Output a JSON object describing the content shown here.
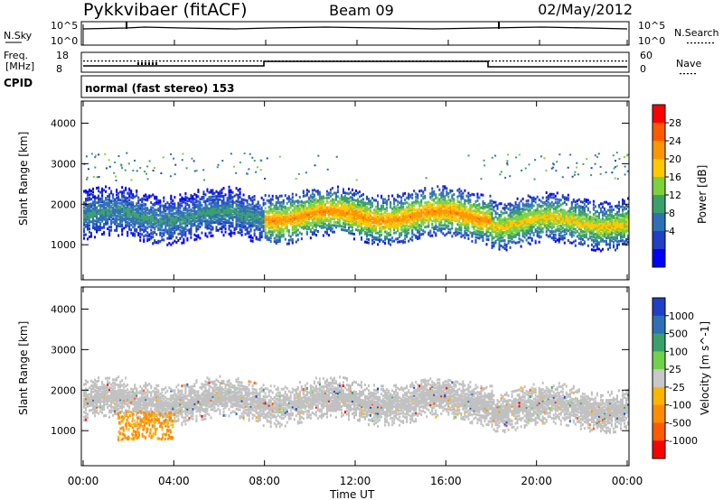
{
  "header": {
    "title": "Pykkvibaer (fitACF)",
    "beam": "Beam 09",
    "date": "02/May/2012"
  },
  "top_panels": {
    "nsky_label": "N.Sky",
    "nsearch_label": "N.Search",
    "noise_ticks": [
      "10^5",
      "10^0"
    ],
    "freq_label": "Freq.",
    "freq_unit": "[MHz]",
    "freq_ticks": [
      "18",
      "8"
    ],
    "nave_label": "Nave",
    "nave_ticks": [
      "60",
      "0"
    ],
    "cpid_label": "CPID",
    "cpid_text": "normal (fast stereo) 153"
  },
  "chart_data": [
    {
      "type": "heatmap",
      "name_text": "Power",
      "ylabel": "Slant Range [km]",
      "colorbar_label": "Power [dB]",
      "x": [
        "00:00",
        "04:00",
        "08:00",
        "12:00",
        "16:00",
        "20:00",
        "00:00"
      ],
      "xlim_hours": [
        0,
        24
      ],
      "ylim_km": [
        180,
        4500
      ],
      "yticks": [
        1000,
        2000,
        3000,
        4000
      ],
      "colorbar_ticks": [
        "28",
        "24",
        "20",
        "16",
        "12",
        "8",
        "4"
      ],
      "colorbar_colors": [
        "#ff0000",
        "#ff5a00",
        "#ff9600",
        "#ffc800",
        "#7cd13c",
        "#3ba06a",
        "#2e6fb8",
        "#1f3fc6",
        "#0000ff"
      ],
      "bands": [
        {
          "t0": 0,
          "t1": 8,
          "center_km": 1750,
          "power_db": 12
        },
        {
          "t0": 8,
          "t1": 18,
          "center_km": 1750,
          "power_db": 24
        },
        {
          "t0": 18,
          "t1": 24,
          "center_km": 1600,
          "power_db": 20
        }
      ]
    },
    {
      "type": "heatmap",
      "ylabel": "Slant Range [km]",
      "colorbar_label": "Velocity [m s^-1]",
      "x": [
        "00:00",
        "04:00",
        "08:00",
        "12:00",
        "16:00",
        "20:00",
        "00:00"
      ],
      "xlim_hours": [
        0,
        24
      ],
      "ylim_km": [
        180,
        4500
      ],
      "yticks": [
        1000,
        2000,
        3000,
        4000
      ],
      "colorbar_ticks": [
        "1000",
        "500",
        "100",
        "25",
        "-25",
        "-100",
        "-500",
        "-1000"
      ],
      "colorbar_colors": [
        "#1f3fc6",
        "#2e6fb8",
        "#3ba06a",
        "#6fd24a",
        "#c8c8c8",
        "#ffb400",
        "#ff8c00",
        "#ff5a00",
        "#ff0000"
      ],
      "xlabel": "Time UT"
    }
  ],
  "colors": {
    "axis": "#000000",
    "grid": "#bbbbbb",
    "ground_scatter": "#c0c0c0"
  }
}
